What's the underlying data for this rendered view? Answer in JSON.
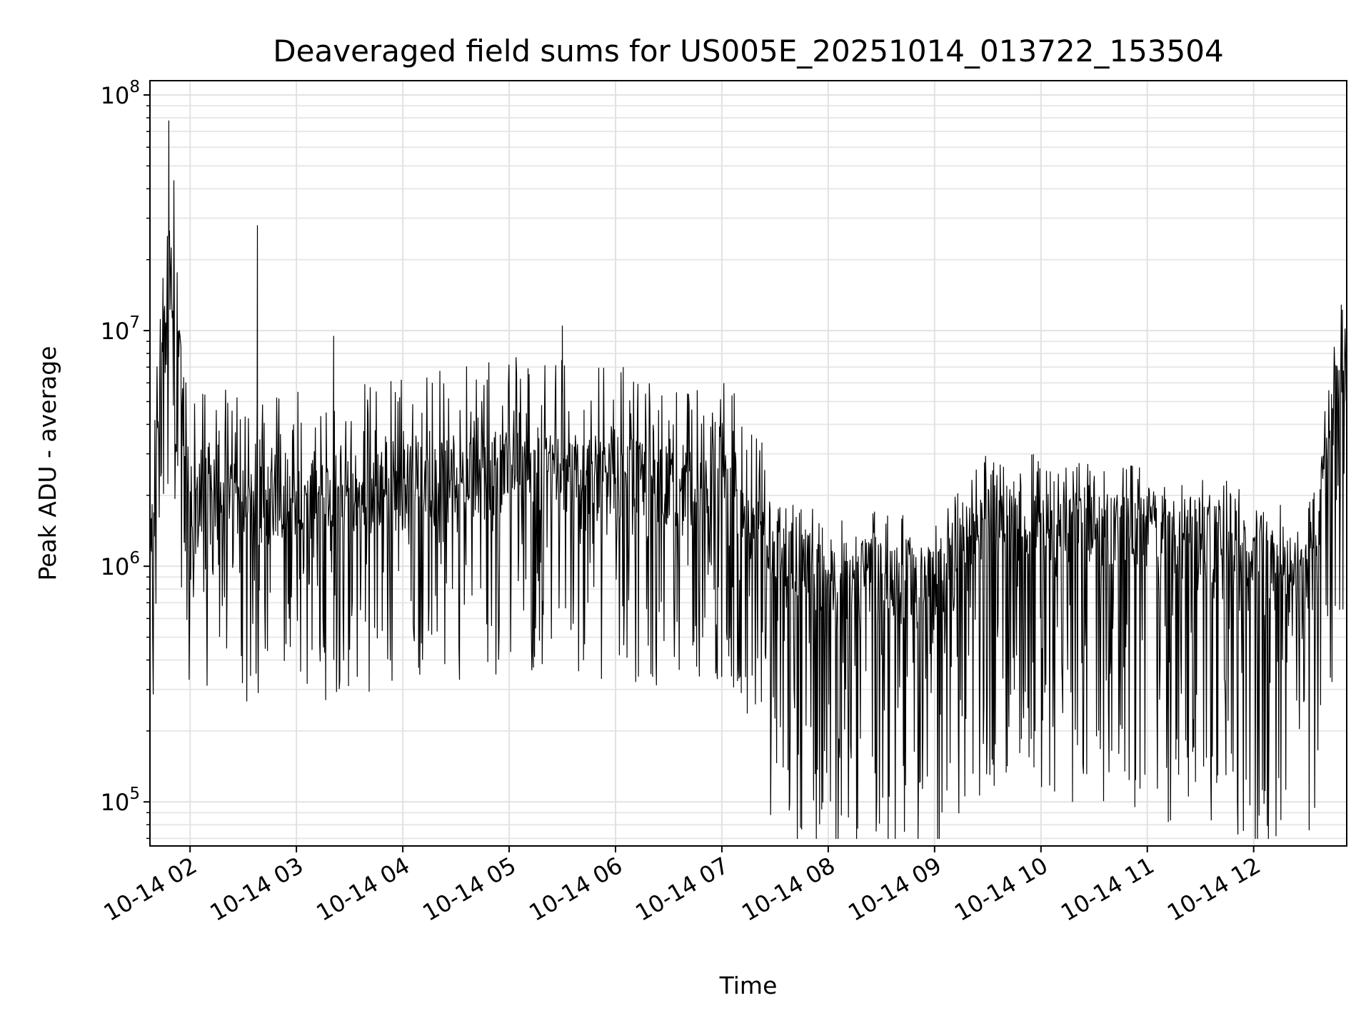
{
  "chart_data": {
    "type": "line",
    "title": "Deaveraged field sums for US005E_20251014_013722_153504",
    "xlabel": "Time",
    "ylabel": "Peak ADU - average",
    "yscale": "log",
    "ylim": [
      65000,
      115000000
    ],
    "xlim": [
      "2025-10-14T01:37:22",
      "2025-10-14T12:52:30"
    ],
    "x_ticks": [
      "10-14 02",
      "10-14 03",
      "10-14 04",
      "10-14 05",
      "10-14 06",
      "10-14 07",
      "10-14 08",
      "10-14 09",
      "10-14 10",
      "10-14 11",
      "10-14 12"
    ],
    "y_ticks": [
      {
        "base": "10",
        "exp": "5",
        "value": 100000
      },
      {
        "base": "10",
        "exp": "6",
        "value": 1000000
      },
      {
        "base": "10",
        "exp": "7",
        "value": 10000000
      },
      {
        "base": "10",
        "exp": "8",
        "value": 100000000
      }
    ],
    "grid": true,
    "legend": "none",
    "line_color": "#000000",
    "series": [
      {
        "x": [
          "2025-10-14T01:37",
          "2025-10-14T01:48",
          "2025-10-14T01:49",
          "2025-10-14T02:00",
          "2025-10-14T02:30",
          "2025-10-14T02:38",
          "2025-10-14T03:00",
          "2025-10-14T03:21",
          "2025-10-14T03:30",
          "2025-10-14T04:00",
          "2025-10-14T04:30",
          "2025-10-14T05:00",
          "2025-10-14T05:30",
          "2025-10-14T06:00",
          "2025-10-14T06:30",
          "2025-10-14T07:00",
          "2025-10-14T07:30",
          "2025-10-14T07:38",
          "2025-10-14T08:00",
          "2025-10-14T08:30",
          "2025-10-14T09:00",
          "2025-10-14T09:30",
          "2025-10-14T10:00",
          "2025-10-14T10:30",
          "2025-10-14T10:53",
          "2025-10-14T11:00",
          "2025-10-14T11:30",
          "2025-10-14T12:00",
          "2025-10-14T12:30",
          "2025-10-14T12:50"
        ],
        "y": [
          1000000,
          78000000,
          24000000,
          2200000,
          2000000,
          28000000,
          2000000,
          9500000,
          2200000,
          2300000,
          2500000,
          2800000,
          10500000,
          2600000,
          2400000,
          2300000,
          1300000,
          92000,
          900000,
          1000000,
          900000,
          1800000,
          1700000,
          1600000,
          95000,
          1500000,
          1400000,
          1200000,
          900000,
          8000000
        ]
      }
    ]
  }
}
